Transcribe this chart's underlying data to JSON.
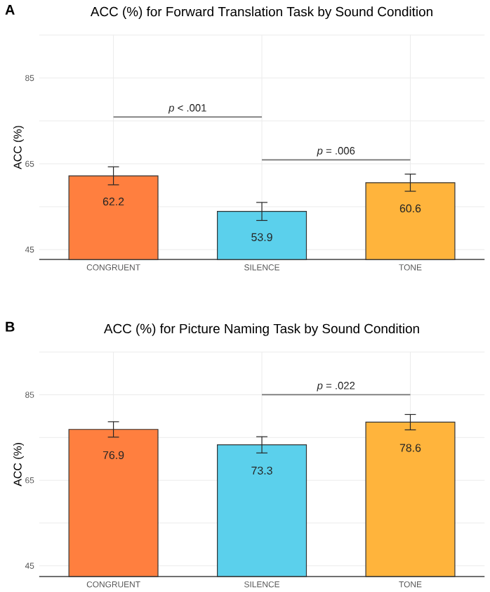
{
  "chart_data": [
    {
      "type": "bar",
      "title": "ACC (%) for Forward Translation Task by Sound Condition",
      "ylabel": "ACC (%)",
      "categories": [
        "CONGRUENT",
        "SILENCE",
        "TONE"
      ],
      "values": [
        62.2,
        53.9,
        60.6
      ],
      "colors": [
        "#ff7f3f",
        "#5bd0ec",
        "#ffb43c"
      ],
      "errors": [
        2.1,
        2.1,
        2.0
      ],
      "data_labels": true,
      "ylim": [
        42.7,
        95
      ],
      "yticks": [
        45,
        {
          "value": 55,
          "label": null
        },
        65,
        {
          "value": 75,
          "label": null
        },
        85,
        {
          "value": 95,
          "label": null
        }
      ],
      "grid": true,
      "annotations": [
        "A",
        "*p* < .001",
        "*p* = .006"
      ]
    },
    {
      "type": "bar",
      "title": "ACC (%) for Picture Naming Task by Sound Condition",
      "ylabel": "ACC (%)",
      "categories": [
        "CONGRUENT",
        "SILENCE",
        "TONE"
      ],
      "values": [
        76.9,
        73.3,
        78.6
      ],
      "colors": [
        "#ff7f3f",
        "#5bd0ec",
        "#ffb43c"
      ],
      "errors": [
        1.8,
        1.9,
        1.8
      ],
      "data_labels": true,
      "ylim": [
        42.5,
        95
      ],
      "yticks": [
        45,
        {
          "value": 55,
          "label": null
        },
        65,
        {
          "value": 75,
          "label": null
        },
        85,
        {
          "value": 95,
          "label": null
        }
      ],
      "grid": true,
      "annotations": [
        "B",
        "*p* = .022"
      ]
    }
  ]
}
